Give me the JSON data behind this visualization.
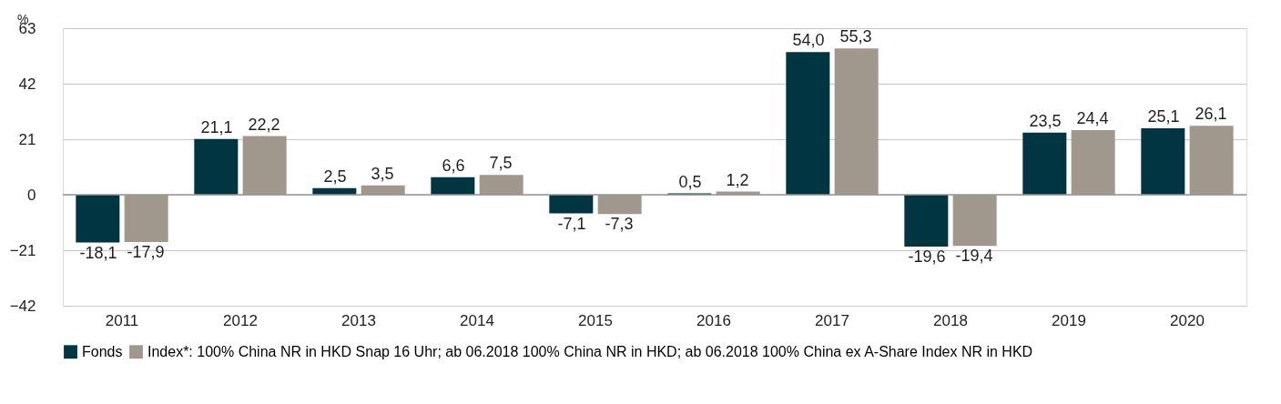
{
  "chart_data": {
    "type": "bar",
    "ylabel": "%",
    "categories": [
      "2011",
      "2012",
      "2013",
      "2014",
      "2015",
      "2016",
      "2017",
      "2018",
      "2019",
      "2020"
    ],
    "series": [
      {
        "name": "Fonds",
        "color": "#003541",
        "values": [
          -18.1,
          21.1,
          2.5,
          6.6,
          -7.1,
          0.5,
          54.0,
          -19.6,
          23.5,
          25.1
        ],
        "value_labels": [
          "-18,1",
          "21,1",
          "2,5",
          "6,6",
          "-7,1",
          "0,5",
          "54,0",
          "-19,6",
          "23,5",
          "25,1"
        ]
      },
      {
        "name": "Index*: 100% China NR in HKD Snap 16 Uhr; ab 06.2018 100% China NR in HKD; ab 06.2018 100% China ex A-Share Index NR in HKD",
        "color": "#a0978d",
        "values": [
          -17.9,
          22.2,
          3.5,
          7.5,
          -7.3,
          1.2,
          55.3,
          -19.4,
          24.4,
          26.1
        ],
        "value_labels": [
          "-17,9",
          "22,2",
          "3,5",
          "7,5",
          "-7,3",
          "1,2",
          "55,3",
          "-19,4",
          "24,4",
          "26,1"
        ]
      }
    ],
    "ylim": [
      -42,
      63
    ],
    "yticks": [
      -42,
      -21,
      0,
      21,
      42,
      63
    ],
    "grid": "y",
    "legend": "bottom"
  }
}
